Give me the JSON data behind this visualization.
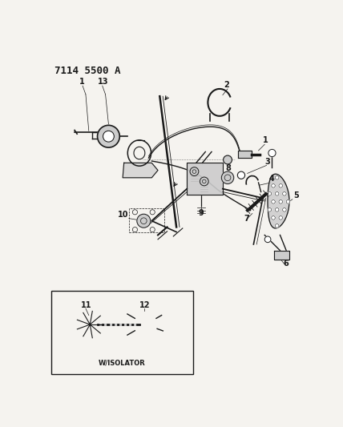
{
  "title": "7114 5500 A",
  "bg_color": "#f5f3ef",
  "white": "#ffffff",
  "dark": "#1a1a1a",
  "gray": "#888888",
  "lgray": "#cccccc",
  "title_fontsize": 9,
  "label_fontsize": 7,
  "inset_label": "W/ISOLATOR"
}
